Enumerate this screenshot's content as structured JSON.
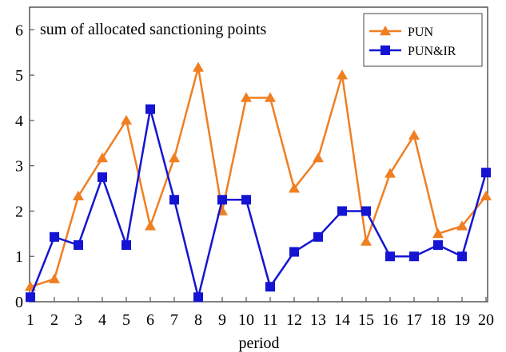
{
  "chart_data": {
    "type": "line",
    "title": "sum of allocated sanctioning points",
    "xlabel": "period",
    "ylabel": "",
    "x": [
      1,
      2,
      3,
      4,
      5,
      6,
      7,
      8,
      9,
      10,
      11,
      12,
      13,
      14,
      15,
      16,
      17,
      18,
      19,
      20
    ],
    "xlim": [
      1,
      20
    ],
    "ylim": [
      0,
      6.5
    ],
    "yticks": [
      0,
      1,
      2,
      3,
      4,
      5,
      6
    ],
    "grid": false,
    "legend_position": "top-right",
    "series": [
      {
        "name": "PUN",
        "color": "#f07f22",
        "marker": "triangle",
        "values": [
          0.33,
          0.5,
          2.33,
          3.17,
          4.0,
          1.67,
          3.17,
          5.17,
          2.0,
          4.5,
          4.5,
          2.5,
          3.17,
          5.0,
          1.33,
          2.83,
          3.67,
          1.5,
          1.67,
          2.33
        ]
      },
      {
        "name": "PUN&IR",
        "color": "#1414d2",
        "marker": "square",
        "values": [
          0.1,
          1.43,
          1.25,
          2.75,
          1.25,
          4.25,
          2.25,
          0.1,
          2.25,
          2.25,
          0.33,
          1.1,
          1.43,
          2.0,
          2.0,
          1.0,
          1.0,
          1.25,
          1.0,
          2.85
        ]
      }
    ]
  }
}
